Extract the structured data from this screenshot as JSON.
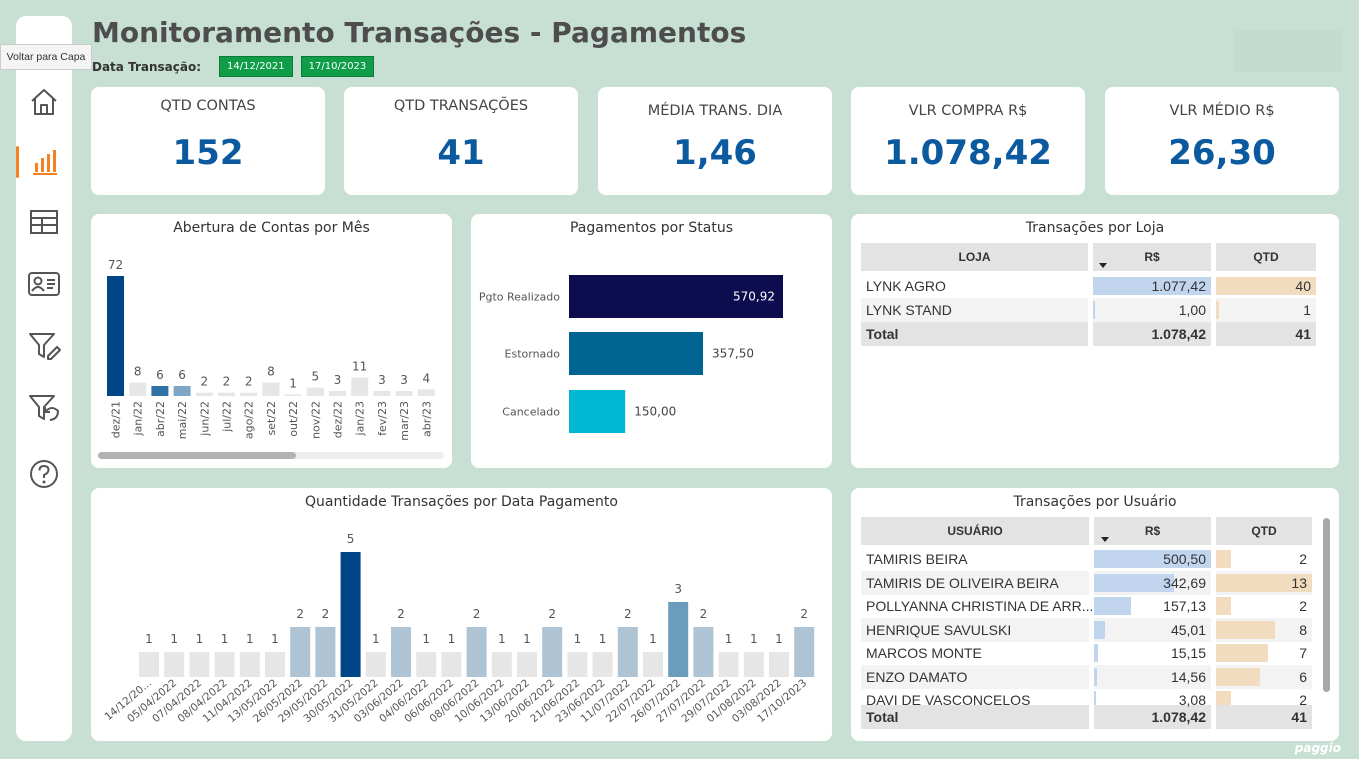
{
  "header": {
    "title": "Monitoramento Transações - Pagamentos",
    "date_label": "Data Transação:",
    "date_start": "14/12/2021",
    "date_end": "17/10/2023",
    "tooltip": "Voltar para Capa",
    "brand": "paggio"
  },
  "sidebar": {
    "items": [
      {
        "icon": "home-icon",
        "active": false
      },
      {
        "icon": "bar-chart-icon",
        "active": true
      },
      {
        "icon": "table-icon",
        "active": false
      },
      {
        "icon": "id-card-icon",
        "active": false
      },
      {
        "icon": "filter-edit-icon",
        "active": false
      },
      {
        "icon": "filter-reset-icon",
        "active": false
      },
      {
        "icon": "help-icon",
        "active": false
      }
    ]
  },
  "kpis": [
    {
      "label": "QTD CONTAS",
      "value": "152"
    },
    {
      "label": "QTD TRANSAÇÕES",
      "value": "41"
    },
    {
      "label": "MÉDIA TRANS. DIA",
      "value": "1,46"
    },
    {
      "label": "VLR COMPRA R$",
      "value": "1.078,42"
    },
    {
      "label": "VLR MÉDIO R$",
      "value": "26,30"
    }
  ],
  "colors": {
    "accent": "#f58220",
    "kpi": "#0b5aa0",
    "dark_blue": "#004586",
    "mid_blue": "#2e72a8",
    "light_blue": "#7ea6c6",
    "gray_bar": "#e6e6e6"
  },
  "chart_data": [
    {
      "type": "bar",
      "title": "Abertura de Contas por Mês",
      "categories": [
        "dez/21",
        "jan/22",
        "abr/22",
        "mai/22",
        "jun/22",
        "jul/22",
        "ago/22",
        "set/22",
        "out/22",
        "nov/22",
        "dez/22",
        "jan/23",
        "fev/23",
        "mar/23",
        "abr/23"
      ],
      "values": [
        72,
        8,
        6,
        6,
        2,
        2,
        2,
        8,
        1,
        5,
        3,
        11,
        3,
        3,
        4
      ],
      "highlight": [
        "#004586",
        "#e6e6e6",
        "#2e72a8",
        "#7ea6c6",
        "#e6e6e6",
        "#e6e6e6",
        "#e6e6e6",
        "#e6e6e6",
        "#e6e6e6",
        "#e6e6e6",
        "#e6e6e6",
        "#e6e6e6",
        "#e6e6e6",
        "#e6e6e6",
        "#e6e6e6"
      ],
      "ylim": [
        0,
        72
      ]
    },
    {
      "type": "bar",
      "orientation": "horizontal",
      "title": "Pagamentos por Status",
      "categories": [
        "Pgto Realizado",
        "Estornado",
        "Cancelado"
      ],
      "values": [
        570.92,
        357.5,
        150.0
      ],
      "labels": [
        "570,92",
        "357,50",
        "150,00"
      ],
      "colors": [
        "#0c0c4e",
        "#006492",
        "#00b8d4"
      ],
      "xlim": [
        0,
        570.92
      ]
    },
    {
      "type": "bar",
      "title": "Quantidade Transações por Data Pagamento",
      "categories": [
        "14/12/20...",
        "05/04/2022",
        "07/04/2022",
        "08/04/2022",
        "11/04/2022",
        "13/05/2022",
        "26/05/2022",
        "29/05/2022",
        "30/05/2022",
        "31/05/2022",
        "03/06/2022",
        "04/06/2022",
        "06/06/2022",
        "08/06/2022",
        "10/06/2022",
        "13/06/2022",
        "20/06/2022",
        "21/06/2022",
        "23/06/2022",
        "11/07/2022",
        "22/07/2022",
        "26/07/2022",
        "27/07/2022",
        "29/07/2022",
        "01/08/2022",
        "03/08/2022",
        "17/10/2023"
      ],
      "values": [
        1,
        1,
        1,
        1,
        1,
        1,
        2,
        2,
        5,
        1,
        2,
        1,
        1,
        2,
        1,
        1,
        2,
        1,
        1,
        2,
        1,
        3,
        2,
        1,
        1,
        1,
        2
      ],
      "ylim": [
        0,
        5
      ]
    }
  ],
  "loja_table": {
    "title": "Transações por Loja",
    "headers": [
      "LOJA",
      "R$",
      "QTD"
    ],
    "rows": [
      {
        "name": "LYNK AGRO",
        "valor": "1.077,42",
        "valor_frac": 1.0,
        "qtd": "40",
        "qtd_frac": 1.0
      },
      {
        "name": "LYNK STAND",
        "valor": "1,00",
        "valor_frac": 0.001,
        "qtd": "1",
        "qtd_frac": 0.025
      }
    ],
    "total": {
      "label": "Total",
      "valor": "1.078,42",
      "qtd": "41"
    }
  },
  "usuario_table": {
    "title": "Transações por Usuário",
    "headers": [
      "USUÁRIO",
      "R$",
      "QTD"
    ],
    "rows": [
      {
        "name": "TAMIRIS BEIRA",
        "valor": "500,50",
        "valor_frac": 1.0,
        "qtd": "2",
        "qtd_frac": 0.154
      },
      {
        "name": "TAMIRIS DE OLIVEIRA BEIRA",
        "valor": "342,69",
        "valor_frac": 0.685,
        "qtd": "13",
        "qtd_frac": 1.0
      },
      {
        "name": "POLLYANNA CHRISTINA DE ARR...",
        "valor": "157,13",
        "valor_frac": 0.314,
        "qtd": "2",
        "qtd_frac": 0.154
      },
      {
        "name": "HENRIQUE SAVULSKI",
        "valor": "45,01",
        "valor_frac": 0.09,
        "qtd": "8",
        "qtd_frac": 0.615
      },
      {
        "name": "MARCOS MONTE",
        "valor": "15,15",
        "valor_frac": 0.03,
        "qtd": "7",
        "qtd_frac": 0.538
      },
      {
        "name": "ENZO DAMATO",
        "valor": "14,56",
        "valor_frac": 0.029,
        "qtd": "6",
        "qtd_frac": 0.462
      },
      {
        "name": "DAVI DE VASCONCELOS",
        "valor": "3,08",
        "valor_frac": 0.006,
        "qtd": "2",
        "qtd_frac": 0.154
      }
    ],
    "total": {
      "label": "Total",
      "valor": "1.078,42",
      "qtd": "41"
    }
  }
}
